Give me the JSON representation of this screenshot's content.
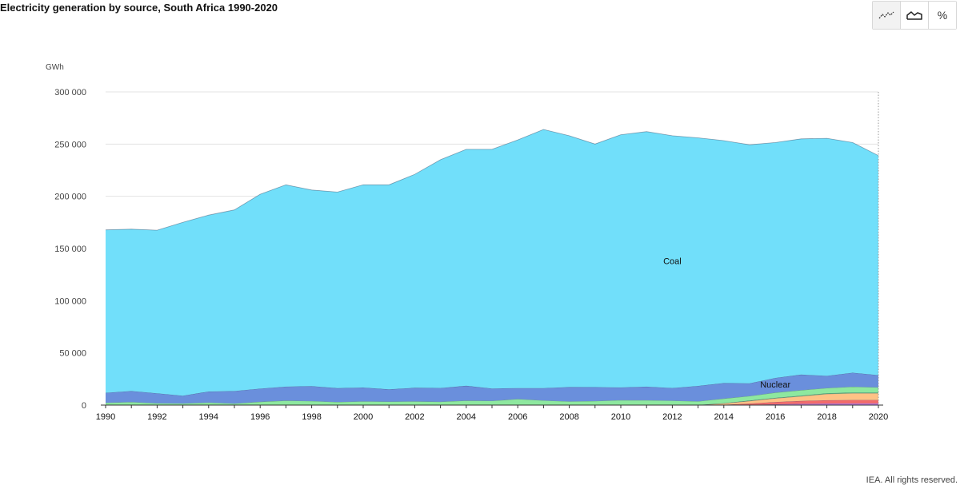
{
  "title": "Electricity generation by source, South Africa 1990-2020",
  "footer": "IEA. All rights reserved.",
  "toolbar": {
    "buttons": [
      {
        "name": "line-chart-button",
        "icon": "line-chart-icon",
        "active": true
      },
      {
        "name": "area-chart-button",
        "icon": "area-chart-icon",
        "active": false
      },
      {
        "name": "percent-button",
        "label": "%",
        "active": false
      }
    ]
  },
  "chart_data": {
    "type": "area",
    "stacked": true,
    "ylabel": "GWh",
    "ylim": [
      0,
      300000
    ],
    "yticks": [
      0,
      50000,
      100000,
      150000,
      200000,
      250000,
      300000
    ],
    "ytick_labels": [
      "0",
      "50 000",
      "100 000",
      "150 000",
      "200 000",
      "250 000",
      "300 000"
    ],
    "xlim": [
      1990,
      2020
    ],
    "xticks": [
      1990,
      1992,
      1994,
      1996,
      1998,
      2000,
      2002,
      2004,
      2006,
      2008,
      2010,
      2012,
      2014,
      2016,
      2018,
      2020
    ],
    "grid": true,
    "x": [
      1990,
      1991,
      1992,
      1993,
      1994,
      1995,
      1996,
      1997,
      1998,
      1999,
      2000,
      2001,
      2002,
      2003,
      2004,
      2005,
      2006,
      2007,
      2008,
      2009,
      2010,
      2011,
      2012,
      2013,
      2014,
      2015,
      2016,
      2017,
      2018,
      2019,
      2020
    ],
    "series": [
      {
        "key": "s1",
        "color": "#c77ce6",
        "values": [
          0,
          0,
          0,
          0,
          0,
          0,
          0,
          0,
          0,
          0,
          0,
          0,
          0,
          0,
          0,
          0,
          0,
          0,
          0,
          0,
          0,
          0,
          0,
          0,
          0,
          300,
          800,
          1200,
          1500,
          1600,
          1600
        ]
      },
      {
        "key": "s2",
        "color": "#f26b6b",
        "values": [
          0,
          0,
          0,
          0,
          0,
          0,
          0,
          0,
          0,
          0,
          0,
          0,
          0,
          0,
          0,
          0,
          0,
          0,
          0,
          0,
          0,
          0,
          0,
          0,
          300,
          1200,
          2200,
          2800,
          3200,
          3300,
          3300
        ]
      },
      {
        "key": "s3",
        "color": "#ffc285",
        "values": [
          0,
          0,
          0,
          0,
          0,
          0,
          0,
          0,
          0,
          0,
          0,
          0,
          0,
          0,
          0,
          0,
          0,
          0,
          0,
          0,
          0,
          0,
          0,
          0,
          1300,
          2500,
          3500,
          4500,
          6000,
          6500,
          6500
        ]
      },
      {
        "key": "s4",
        "color": "#56b87a",
        "values": [
          0,
          0,
          0,
          0,
          0,
          0,
          0,
          0,
          0,
          0,
          0,
          0,
          0,
          0,
          0,
          0,
          0,
          0,
          0,
          0,
          0,
          0,
          0,
          100,
          200,
          400,
          500,
          600,
          700,
          700,
          700
        ]
      },
      {
        "key": "s5",
        "color": "#8ee89f",
        "values": [
          2300,
          3000,
          1800,
          1600,
          2500,
          1500,
          3200,
          4400,
          3900,
          3000,
          3700,
          3400,
          3600,
          3300,
          4400,
          4100,
          5800,
          4500,
          3500,
          3900,
          4800,
          4700,
          4300,
          3600,
          4500,
          4300,
          5000,
          5200,
          5000,
          5500,
          5000
        ]
      },
      {
        "key": "s6",
        "name": "Nuclear",
        "color": "#6a8fdc",
        "values": [
          9500,
          10500,
          9500,
          7400,
          10500,
          12000,
          12600,
          13300,
          14300,
          13200,
          13100,
          11700,
          13000,
          13100,
          14100,
          11800,
          10500,
          11800,
          13800,
          13300,
          12100,
          13000,
          12100,
          14700,
          14800,
          12200,
          14000,
          14900,
          11600,
          13400,
          11600
        ]
      },
      {
        "key": "s7",
        "name": "Coal",
        "color": "#71dffa",
        "values": [
          156000,
          155000,
          156200,
          166000,
          169000,
          173500,
          186200,
          193300,
          187800,
          187800,
          194200,
          195900,
          204400,
          218600,
          226500,
          229100,
          237700,
          247700,
          240700,
          232800,
          242100,
          244300,
          241600,
          237600,
          232200,
          228400,
          225500,
          225800,
          227500,
          220500,
          210300
        ]
      }
    ],
    "labels": [
      {
        "series": "s7",
        "text": "Coal",
        "x": 2012,
        "y": 135000
      },
      {
        "series": "s6",
        "text": "Nuclear",
        "x": 2016,
        "y": 17000
      }
    ]
  }
}
